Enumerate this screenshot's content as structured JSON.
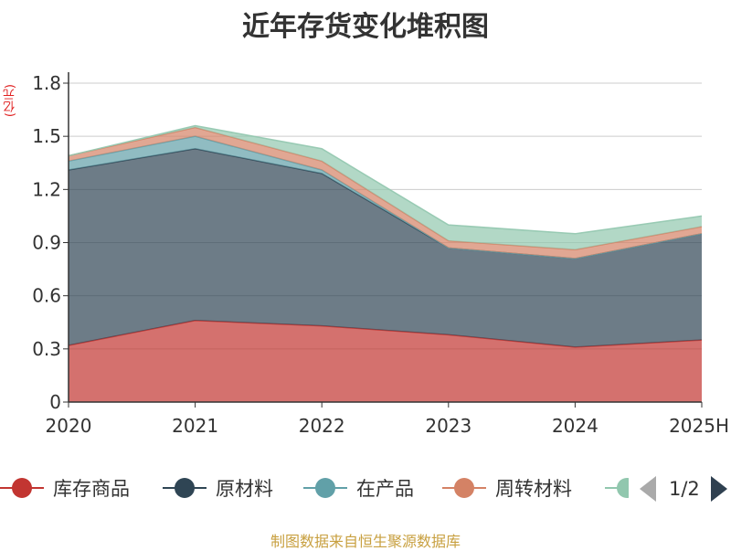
{
  "title": "近年存货变化堆积图",
  "unit_label": "(亿元)",
  "source": "制图数据来自恒生聚源数据库",
  "legend": {
    "items": [
      {
        "label": "库存商品",
        "color": "#c23531"
      },
      {
        "label": "原材料",
        "color": "#2f4554"
      },
      {
        "label": "在产品",
        "color": "#61a0a8"
      },
      {
        "label": "周转材料",
        "color": "#d48265"
      },
      {
        "label": "",
        "color": "#91c7ae"
      }
    ],
    "page_text": "1/2"
  },
  "chart_data": {
    "type": "area",
    "stacked": true,
    "title": "近年存货变化堆积图",
    "ylabel": "(亿元)",
    "xlabel": "",
    "categories": [
      "2020",
      "2021",
      "2022",
      "2023",
      "2024",
      "2025H"
    ],
    "ylim": [
      0,
      1.8
    ],
    "yticks": [
      "0",
      "0.3",
      "0.6",
      "0.9",
      "1.2",
      "1.5",
      "1.8"
    ],
    "grid": true,
    "legend_position": "bottom",
    "series": [
      {
        "name": "库存商品",
        "color": "#c23531",
        "values": [
          0.32,
          0.46,
          0.43,
          0.38,
          0.31,
          0.35
        ]
      },
      {
        "name": "原材料",
        "color": "#2f4554",
        "values": [
          0.99,
          0.97,
          0.86,
          0.49,
          0.5,
          0.6
        ]
      },
      {
        "name": "在产品",
        "color": "#61a0a8",
        "values": [
          0.05,
          0.07,
          0.02,
          0.0,
          0.0,
          0.0
        ]
      },
      {
        "name": "周转材料",
        "color": "#d48265",
        "values": [
          0.03,
          0.05,
          0.05,
          0.04,
          0.05,
          0.04
        ]
      },
      {
        "color": "#91c7ae",
        "values": [
          0.0,
          0.01,
          0.07,
          0.09,
          0.09,
          0.06
        ]
      }
    ]
  }
}
